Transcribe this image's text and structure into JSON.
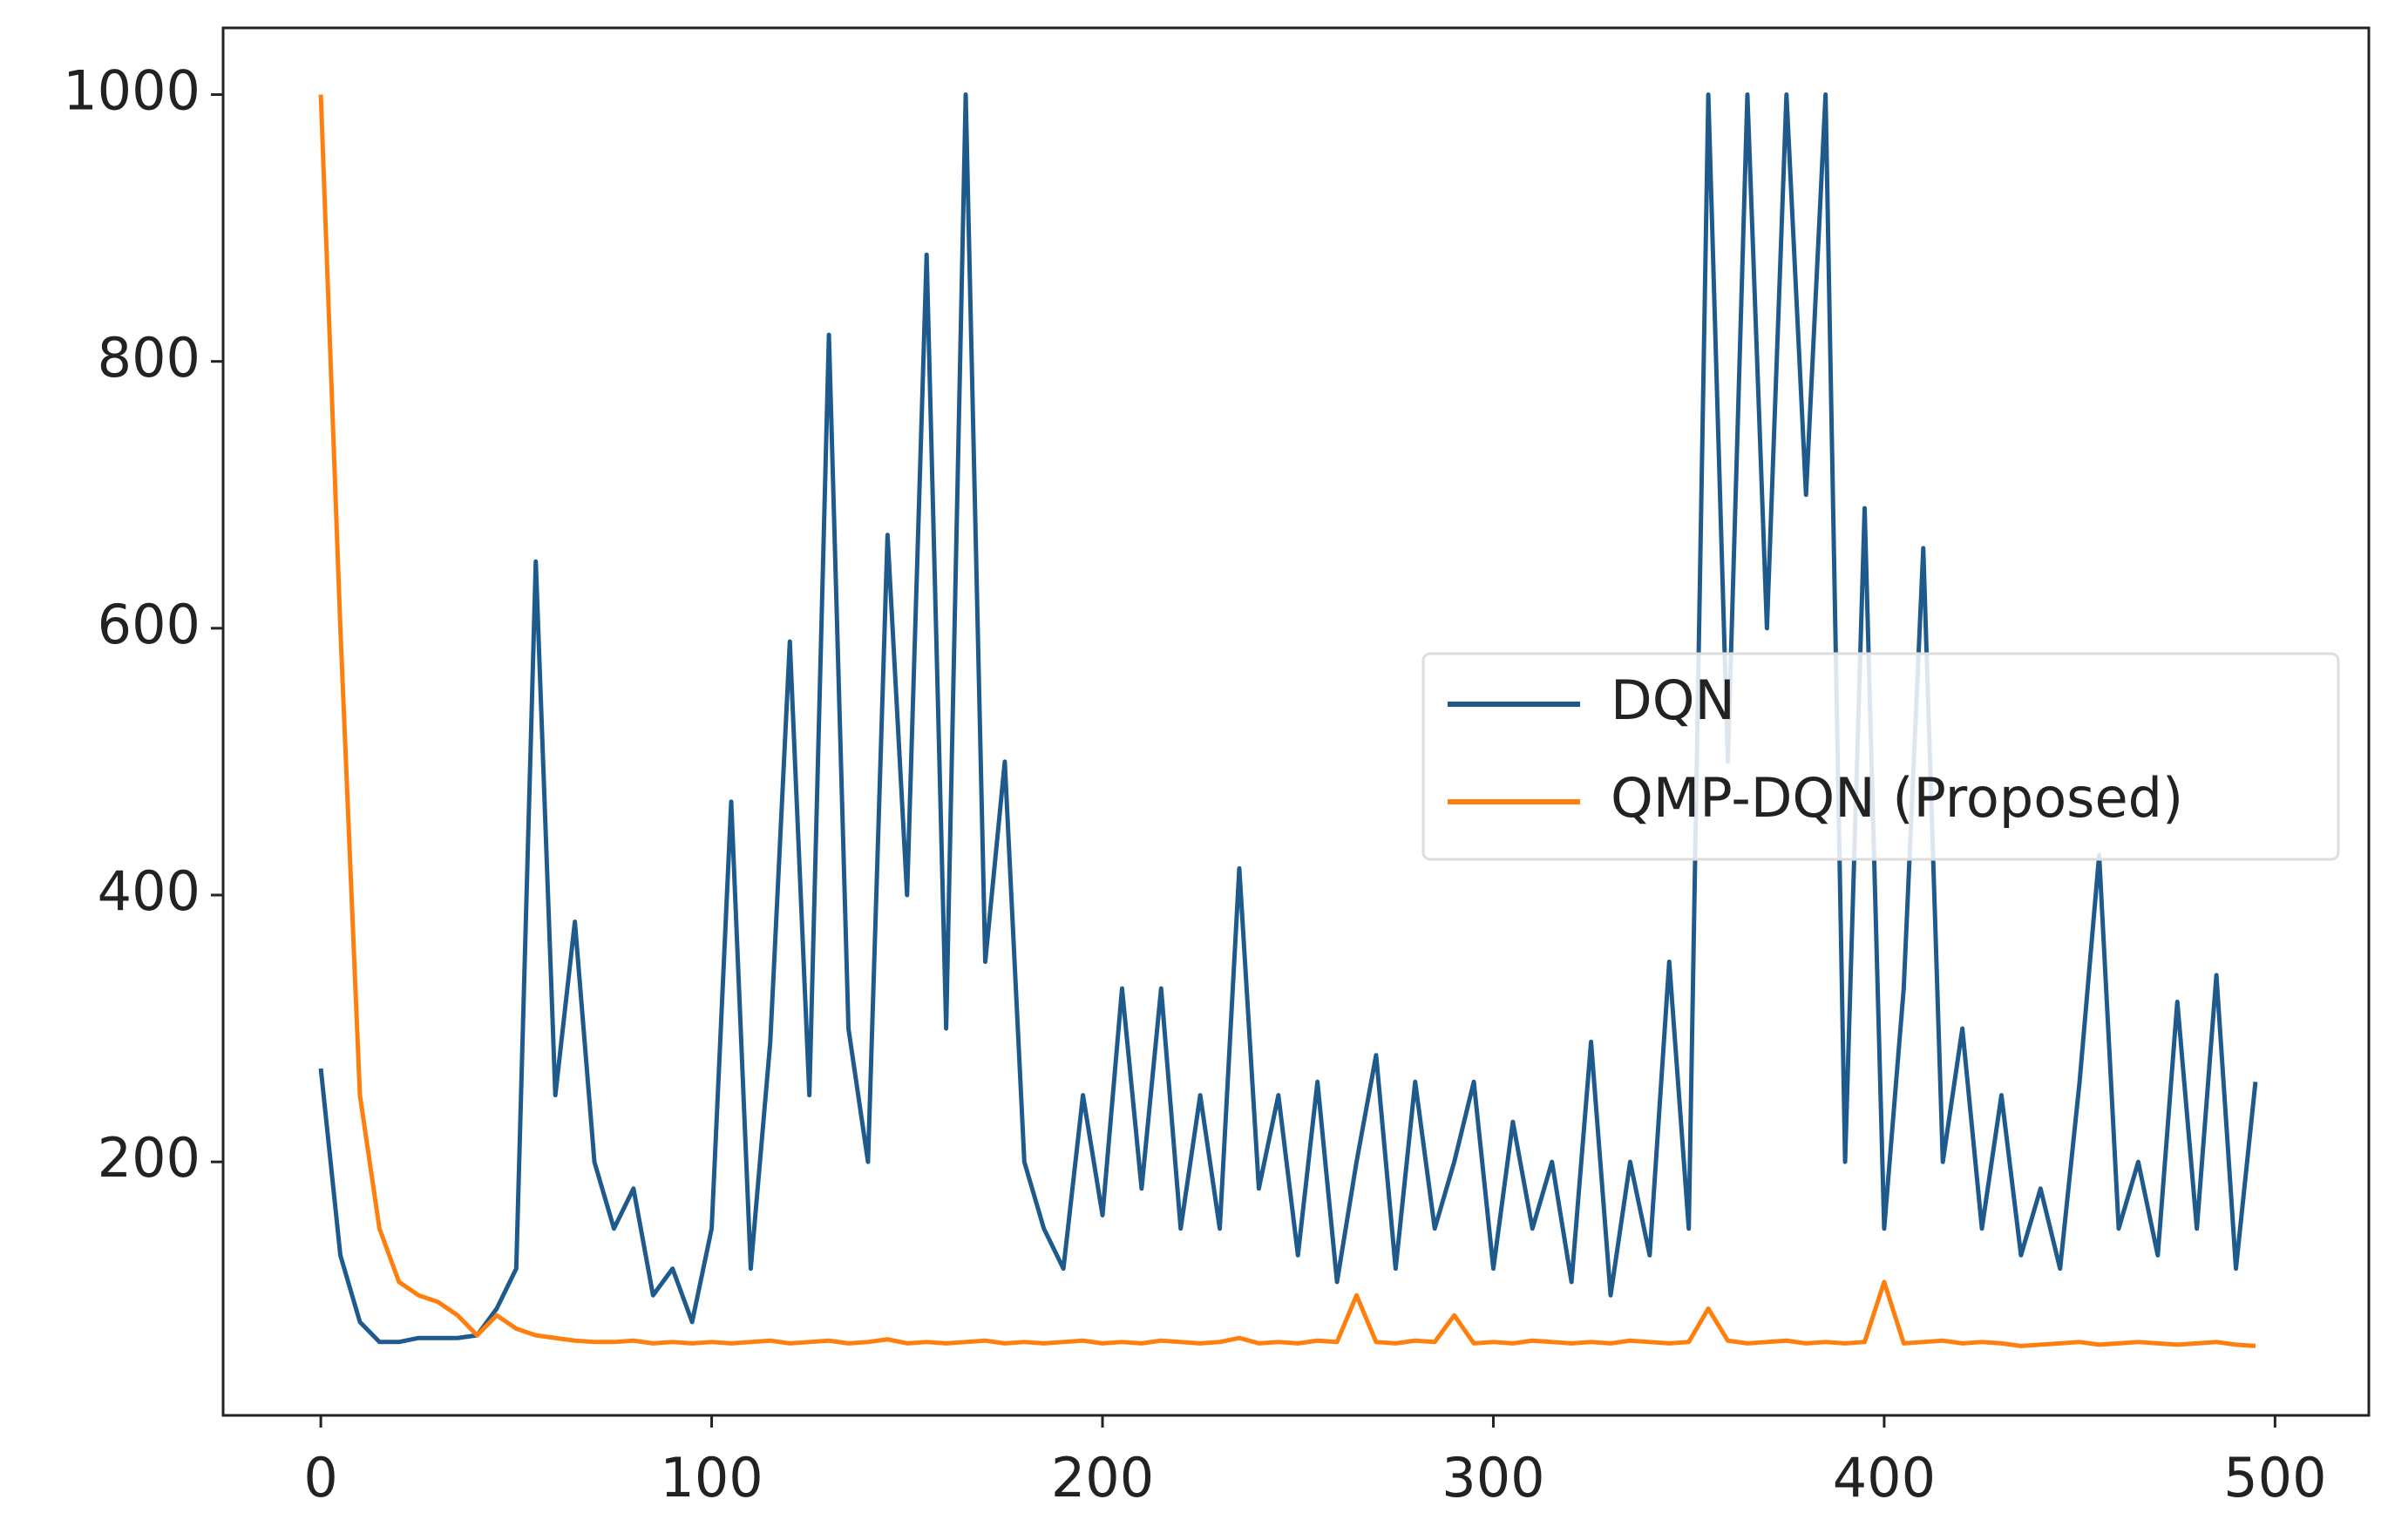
{
  "chart_data": {
    "type": "line",
    "x": [
      0,
      5,
      10,
      15,
      20,
      25,
      30,
      35,
      40,
      45,
      50,
      55,
      60,
      65,
      70,
      75,
      80,
      85,
      90,
      95,
      100,
      105,
      110,
      115,
      120,
      125,
      130,
      135,
      140,
      145,
      150,
      155,
      160,
      165,
      170,
      175,
      180,
      185,
      190,
      195,
      200,
      205,
      210,
      215,
      220,
      225,
      230,
      235,
      240,
      245,
      250,
      255,
      260,
      265,
      270,
      275,
      280,
      285,
      290,
      295,
      300,
      305,
      310,
      315,
      320,
      325,
      330,
      335,
      340,
      345,
      350,
      355,
      360,
      365,
      370,
      375,
      380,
      385,
      390,
      395,
      400,
      405,
      410,
      415,
      420,
      425,
      430,
      435,
      440,
      445,
      450,
      455,
      460,
      465,
      470,
      475,
      480,
      485,
      490,
      495
    ],
    "series": [
      {
        "name": "DQN",
        "color": "#1f5a8c",
        "values": [
          270,
          130,
          80,
          65,
          65,
          68,
          68,
          68,
          70,
          90,
          120,
          650,
          250,
          380,
          200,
          150,
          180,
          100,
          120,
          80,
          150,
          470,
          120,
          290,
          590,
          250,
          820,
          300,
          200,
          670,
          400,
          880,
          300,
          1000,
          350,
          500,
          200,
          150,
          120,
          250,
          160,
          330,
          180,
          330,
          150,
          250,
          150,
          420,
          180,
          250,
          130,
          260,
          110,
          200,
          280,
          120,
          260,
          150,
          200,
          260,
          120,
          230,
          150,
          200,
          110,
          290,
          100,
          200,
          130,
          350,
          150,
          1000,
          500,
          1000,
          600,
          1000,
          700,
          1000,
          200,
          690,
          150,
          330,
          660,
          200,
          300,
          150,
          250,
          130,
          180,
          120,
          260,
          430,
          150,
          200,
          130,
          320,
          150,
          340,
          120,
          260
        ]
      },
      {
        "name": "QMP-DQN (Proposed)",
        "color": "#ff7f0e",
        "values": [
          1000,
          600,
          250,
          150,
          110,
          100,
          95,
          85,
          70,
          85,
          75,
          70,
          68,
          66,
          65,
          65,
          66,
          64,
          65,
          64,
          65,
          64,
          65,
          66,
          64,
          65,
          66,
          64,
          65,
          67,
          64,
          65,
          64,
          65,
          66,
          64,
          65,
          64,
          65,
          66,
          64,
          65,
          64,
          66,
          65,
          64,
          65,
          68,
          64,
          65,
          64,
          66,
          65,
          100,
          65,
          64,
          66,
          65,
          85,
          64,
          65,
          64,
          66,
          65,
          64,
          65,
          64,
          66,
          65,
          64,
          65,
          90,
          66,
          64,
          65,
          66,
          64,
          65,
          64,
          65,
          110,
          64,
          65,
          66,
          64,
          65,
          64,
          62,
          63,
          64,
          65,
          63,
          64,
          65,
          64,
          63,
          64,
          65,
          63,
          62
        ]
      }
    ],
    "xlim": [
      -25,
      524
    ],
    "ylim": [
      10,
      1050
    ],
    "xticks": [
      0,
      100,
      200,
      300,
      400,
      500
    ],
    "yticks": [
      200,
      400,
      600,
      800,
      1000
    ],
    "legend": "center right"
  }
}
